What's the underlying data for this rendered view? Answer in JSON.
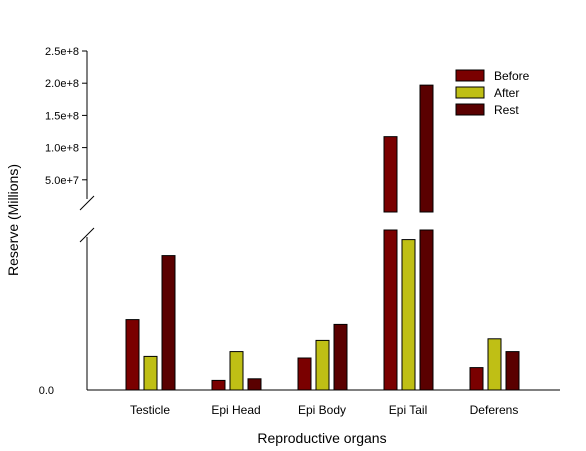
{
  "chart_data": {
    "type": "bar",
    "xlabel": "Reproductive organs",
    "ylabel": "Reserve (Millions)",
    "categories": [
      "Testicle",
      "Epi Head",
      "Epi Body",
      "Epi Tail",
      "Deferens"
    ],
    "series": [
      {
        "name": "Before",
        "color": "#7a0000",
        "values": [
          44000000,
          6000000,
          20000000,
          117000000,
          14000000
        ]
      },
      {
        "name": "After",
        "color": "#bfbf15",
        "values": [
          21000000,
          24000000,
          31000000,
          94000000,
          32000000
        ]
      },
      {
        "name": "Rest",
        "color": "#5a0000",
        "values": [
          84000000,
          7000000,
          41000000,
          197000000,
          24000000
        ]
      }
    ],
    "axis_break": {
      "lower_range": [
        0,
        100000000.0
      ],
      "upper_range": [
        0,
        250000000.0
      ]
    },
    "upper_ticks": [
      {
        "value": 50000000,
        "label": "5.0e+7"
      },
      {
        "value": 100000000,
        "label": "1.0e+8"
      },
      {
        "value": 150000000,
        "label": "1.5e+8"
      },
      {
        "value": 200000000,
        "label": "2.0e+8"
      },
      {
        "value": 250000000,
        "label": "2.5e+8"
      }
    ],
    "lower_ticks": [
      {
        "value": 0,
        "label": "0.0"
      }
    ],
    "legend_position": "top-right",
    "grid": false
  }
}
